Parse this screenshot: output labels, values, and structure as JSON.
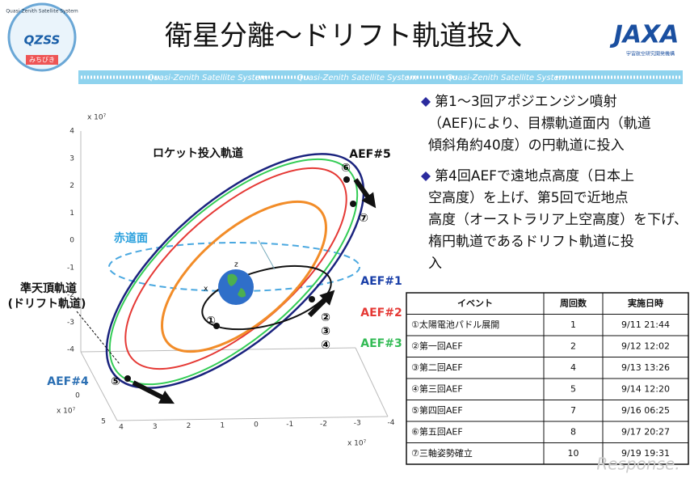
{
  "header": {
    "title": "衛星分離～ドリフト軌道投入",
    "logo_left": {
      "arc_text": "Quasi-Zenith Satellite System",
      "name": "QZSS",
      "sub": "みちびき"
    },
    "logo_right": {
      "name": "JAXA",
      "sub": "宇宙航空研究開発機構"
    },
    "banner": [
      "Quasi-Zenith Satellite System",
      "Quasi-Zenith Satellite System",
      "Quasi-Zenith Satellite System"
    ]
  },
  "bullets": [
    {
      "lines": [
        "第1～3回アポジエンジン噴射",
        "（AEF)により、目標軌道面内（軌道",
        "傾斜角約40度）の円軌道に投入"
      ]
    },
    {
      "lines": [
        "第4回AEFで遠地点高度（日本上",
        "空高度）を上げ、第5回で近地点",
        "高度（オーストラリア上空高度）を下げ、",
        "楕円軌道であるドリフト軌道に投",
        "入"
      ]
    }
  ],
  "plot": {
    "z_scale": "x 10⁷",
    "z_ticks": [
      "4",
      "3",
      "2",
      "1",
      "0",
      "-1",
      "-2",
      "-3",
      "-4"
    ],
    "x_scale": "x 10⁷",
    "x_ticks": [
      "4",
      "3",
      "2",
      "1",
      "0",
      "-1",
      "-2",
      "-3",
      "-4"
    ],
    "y_scale": "x 10⁷",
    "y_ticks": [
      "5",
      "0"
    ],
    "labels": {
      "rocket": "ロケット投入軌道",
      "equator": "赤道面",
      "qzo": "準天頂軌道",
      "drift": "(ドリフト軌道)",
      "aef1": "AEF#1",
      "aef2": "AEF#2",
      "aef3": "AEF#3",
      "aef4": "AEF#4",
      "aef5": "AEF#5",
      "z": "z",
      "x": "x"
    },
    "markers": [
      "①",
      "②",
      "③",
      "④",
      "⑤",
      "⑥",
      "⑦"
    ]
  },
  "table": {
    "header": [
      "イベント",
      "周回数",
      "実施日時"
    ],
    "rows": [
      [
        "①太陽電池パドル展開",
        "1",
        "9/11 21:44"
      ],
      [
        "②第一回AEF",
        "2",
        "9/12 12:02"
      ],
      [
        "③第二回AEF",
        "4",
        "9/13 13:26"
      ],
      [
        "④第三回AEF",
        "5",
        "9/14 12:20"
      ],
      [
        "⑤第四回AEF",
        "7",
        "9/16 06:25"
      ],
      [
        "⑥第五回AEF",
        "8",
        "9/17 20:27"
      ],
      [
        "⑦三軸姿勢確立",
        "10",
        "9/19 19:31"
      ]
    ]
  },
  "watermark": "Response."
}
